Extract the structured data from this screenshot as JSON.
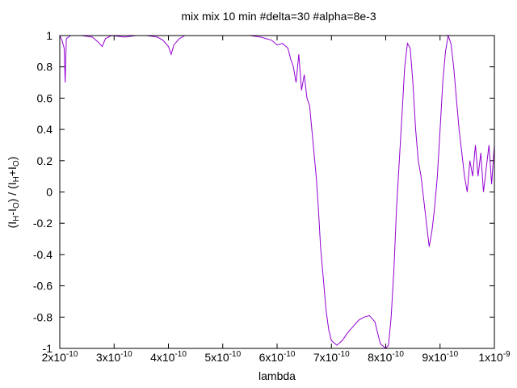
{
  "chart_data": {
    "type": "line",
    "title": "mix mix 10 min #delta=30 #alpha=8e-3",
    "xlabel": "lambda",
    "ylabel": "(I_H-I_O) / (I_H+I_O)",
    "xlim": [
      2e-10,
      1e-09
    ],
    "ylim": [
      -1,
      1
    ],
    "x_ticks": [
      {
        "value": 2e-10,
        "mant": "2x10",
        "exp": "-10"
      },
      {
        "value": 3e-10,
        "mant": "3x10",
        "exp": "-10"
      },
      {
        "value": 4e-10,
        "mant": "4x10",
        "exp": "-10"
      },
      {
        "value": 5e-10,
        "mant": "5x10",
        "exp": "-10"
      },
      {
        "value": 6e-10,
        "mant": "6x10",
        "exp": "-10"
      },
      {
        "value": 7e-10,
        "mant": "7x10",
        "exp": "-10"
      },
      {
        "value": 8e-10,
        "mant": "8x10",
        "exp": "-10"
      },
      {
        "value": 9e-10,
        "mant": "9x10",
        "exp": "-10"
      },
      {
        "value": 1e-09,
        "mant": "1x10",
        "exp": "-9"
      }
    ],
    "y_ticks": [
      {
        "value": 1,
        "label": "1"
      },
      {
        "value": 0.8,
        "label": "0.8"
      },
      {
        "value": 0.6,
        "label": "0.6"
      },
      {
        "value": 0.4,
        "label": "0.4"
      },
      {
        "value": 0.2,
        "label": "0.2"
      },
      {
        "value": 0,
        "label": "0"
      },
      {
        "value": -0.2,
        "label": "-0.2"
      },
      {
        "value": -0.4,
        "label": "-0.4"
      },
      {
        "value": -0.6,
        "label": "-0.6"
      },
      {
        "value": -0.8,
        "label": "-0.8"
      },
      {
        "value": -1,
        "label": "-1"
      }
    ],
    "grid": false,
    "series": [
      {
        "color": "#9400d3",
        "points": [
          [
            2e-10,
            1.0
          ],
          [
            2.04e-10,
            0.97
          ],
          [
            2.08e-10,
            0.92
          ],
          [
            2.1e-10,
            0.7
          ],
          [
            2.12e-10,
            0.98
          ],
          [
            2.2e-10,
            1.0
          ],
          [
            2.4e-10,
            1.0
          ],
          [
            2.6e-10,
            0.99
          ],
          [
            2.7e-10,
            0.96
          ],
          [
            2.78e-10,
            0.93
          ],
          [
            2.84e-10,
            0.98
          ],
          [
            2.95e-10,
            1.0
          ],
          [
            3.2e-10,
            0.99
          ],
          [
            3.4e-10,
            1.0
          ],
          [
            3.6e-10,
            1.0
          ],
          [
            3.8e-10,
            0.99
          ],
          [
            3.9e-10,
            0.97
          ],
          [
            4e-10,
            0.93
          ],
          [
            4.05e-10,
            0.88
          ],
          [
            4.1e-10,
            0.94
          ],
          [
            4.2e-10,
            0.98
          ],
          [
            4.3e-10,
            1.0
          ],
          [
            4.6e-10,
            1.0
          ],
          [
            5e-10,
            1.0
          ],
          [
            5.2e-10,
            1.0
          ],
          [
            5.5e-10,
            1.0
          ],
          [
            5.7e-10,
            0.99
          ],
          [
            5.9e-10,
            0.97
          ],
          [
            6e-10,
            0.94
          ],
          [
            6.1e-10,
            0.95
          ],
          [
            6.2e-10,
            0.92
          ],
          [
            6.25e-10,
            0.85
          ],
          [
            6.3e-10,
            0.8
          ],
          [
            6.35e-10,
            0.7
          ],
          [
            6.4e-10,
            0.88
          ],
          [
            6.45e-10,
            0.65
          ],
          [
            6.5e-10,
            0.75
          ],
          [
            6.55e-10,
            0.6
          ],
          [
            6.6e-10,
            0.55
          ],
          [
            6.64e-10,
            0.4
          ],
          [
            6.68e-10,
            0.25
          ],
          [
            6.72e-10,
            0.1
          ],
          [
            6.76e-10,
            -0.1
          ],
          [
            6.8e-10,
            -0.35
          ],
          [
            6.85e-10,
            -0.55
          ],
          [
            6.9e-10,
            -0.75
          ],
          [
            6.95e-10,
            -0.88
          ],
          [
            7e-10,
            -0.95
          ],
          [
            7.1e-10,
            -0.98
          ],
          [
            7.2e-10,
            -0.95
          ],
          [
            7.3e-10,
            -0.9
          ],
          [
            7.4e-10,
            -0.86
          ],
          [
            7.5e-10,
            -0.82
          ],
          [
            7.6e-10,
            -0.8
          ],
          [
            7.7e-10,
            -0.79
          ],
          [
            7.8e-10,
            -0.83
          ],
          [
            7.85e-10,
            -0.9
          ],
          [
            7.9e-10,
            -0.97
          ],
          [
            8e-10,
            -1.0
          ],
          [
            8.05e-10,
            -0.98
          ],
          [
            8.1e-10,
            -0.8
          ],
          [
            8.15e-10,
            -0.5
          ],
          [
            8.2e-10,
            -0.1
          ],
          [
            8.25e-10,
            0.2
          ],
          [
            8.3e-10,
            0.5
          ],
          [
            8.35e-10,
            0.8
          ],
          [
            8.4e-10,
            0.95
          ],
          [
            8.45e-10,
            0.92
          ],
          [
            8.5e-10,
            0.7
          ],
          [
            8.55e-10,
            0.4
          ],
          [
            8.6e-10,
            0.2
          ],
          [
            8.65e-10,
            0.1
          ],
          [
            8.7e-10,
            -0.05
          ],
          [
            8.75e-10,
            -0.2
          ],
          [
            8.8e-10,
            -0.35
          ],
          [
            8.85e-10,
            -0.25
          ],
          [
            8.9e-10,
            -0.1
          ],
          [
            8.95e-10,
            0.1
          ],
          [
            9e-10,
            0.4
          ],
          [
            9.05e-10,
            0.7
          ],
          [
            9.1e-10,
            0.9
          ],
          [
            9.15e-10,
            1.0
          ],
          [
            9.2e-10,
            0.95
          ],
          [
            9.25e-10,
            0.8
          ],
          [
            9.3e-10,
            0.6
          ],
          [
            9.35e-10,
            0.4
          ],
          [
            9.4e-10,
            0.25
          ],
          [
            9.45e-10,
            0.1
          ],
          [
            9.5e-10,
            0.0
          ],
          [
            9.55e-10,
            0.2
          ],
          [
            9.6e-10,
            0.1
          ],
          [
            9.65e-10,
            0.3
          ],
          [
            9.7e-10,
            0.1
          ],
          [
            9.75e-10,
            0.25
          ],
          [
            9.8e-10,
            0.0
          ],
          [
            9.85e-10,
            0.15
          ],
          [
            9.9e-10,
            0.3
          ],
          [
            9.95e-10,
            0.05
          ],
          [
            1e-09,
            0.3
          ]
        ]
      }
    ]
  }
}
